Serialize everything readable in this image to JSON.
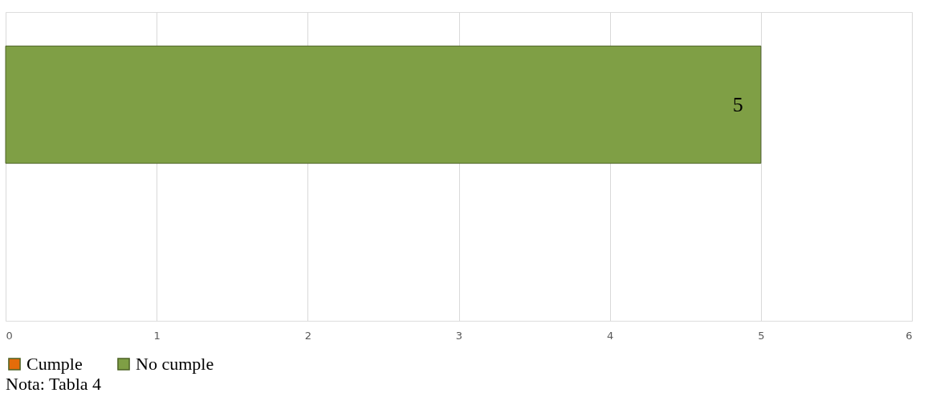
{
  "chart_data": {
    "type": "bar",
    "orientation": "horizontal",
    "categories": [
      null
    ],
    "series": [
      {
        "name": "Cumple",
        "color": "#e46c0a",
        "values": [
          null
        ],
        "value_labels": [
          null
        ]
      },
      {
        "name": "No cumple",
        "color": "#7f9f45",
        "values": [
          5
        ],
        "value_labels": [
          "5"
        ]
      }
    ],
    "xlim": [
      0,
      6
    ],
    "xticks": [
      0,
      1,
      2,
      3,
      4,
      5,
      6
    ],
    "grid": "x",
    "legend": "bottom",
    "annotations": [
      "Nota: Tabla 4"
    ]
  }
}
